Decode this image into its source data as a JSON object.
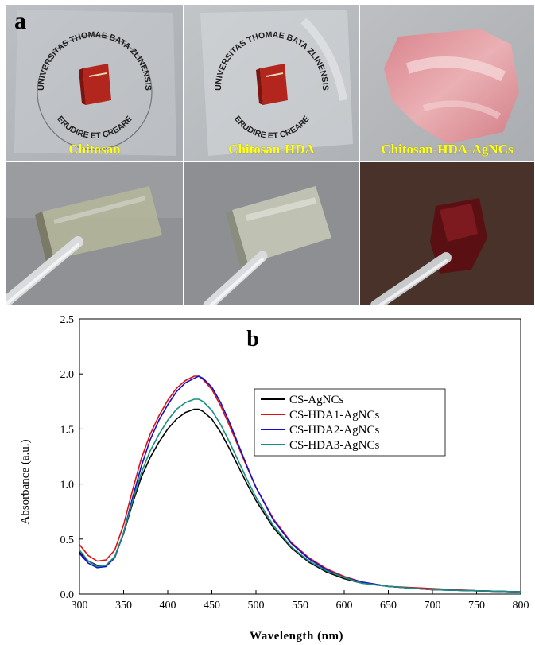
{
  "panel_a": {
    "letter": "a",
    "labels": [
      "Chitosan",
      "Chitosan-HDA",
      "Chitosan-HDA-AgNCs"
    ],
    "seal_text_top": "UNIVERSITAS THOMAE BATA ZLINENSIS",
    "seal_text_bottom": "ERUDIRE ET CREARE"
  },
  "chart_data": {
    "type": "line",
    "panel_letter": "b",
    "title": "",
    "xlabel": "Wavelength (nm)",
    "ylabel": "Absorbance (a.u.)",
    "xlim": [
      300,
      800
    ],
    "ylim": [
      0.0,
      2.5
    ],
    "xticks": [
      300,
      350,
      400,
      450,
      500,
      550,
      600,
      650,
      700,
      750,
      800
    ],
    "yticks": [
      0.0,
      0.5,
      1.0,
      1.5,
      2.0,
      2.5
    ],
    "legend_position": "right",
    "x": [
      300,
      310,
      320,
      330,
      340,
      350,
      360,
      370,
      380,
      390,
      400,
      410,
      420,
      430,
      435,
      440,
      450,
      460,
      470,
      480,
      490,
      500,
      520,
      540,
      560,
      580,
      600,
      620,
      650,
      700,
      750,
      800
    ],
    "series": [
      {
        "name": "CS-AgNCs",
        "color": "#000000",
        "values": [
          0.38,
          0.3,
          0.26,
          0.26,
          0.34,
          0.55,
          0.82,
          1.06,
          1.24,
          1.38,
          1.5,
          1.59,
          1.65,
          1.68,
          1.68,
          1.66,
          1.59,
          1.47,
          1.32,
          1.16,
          1.0,
          0.85,
          0.6,
          0.42,
          0.29,
          0.2,
          0.14,
          0.1,
          0.07,
          0.04,
          0.03,
          0.02
        ]
      },
      {
        "name": "CS-HDA1-AgNCs",
        "color": "#e01010",
        "values": [
          0.45,
          0.35,
          0.3,
          0.31,
          0.4,
          0.63,
          0.94,
          1.23,
          1.45,
          1.62,
          1.76,
          1.87,
          1.94,
          1.98,
          1.98,
          1.95,
          1.86,
          1.71,
          1.53,
          1.34,
          1.15,
          0.97,
          0.68,
          0.47,
          0.33,
          0.23,
          0.16,
          0.11,
          0.07,
          0.05,
          0.03,
          0.02
        ]
      },
      {
        "name": "CS-HDA2-AgNCs",
        "color": "#1010d0",
        "values": [
          0.37,
          0.28,
          0.24,
          0.25,
          0.33,
          0.56,
          0.87,
          1.16,
          1.4,
          1.58,
          1.72,
          1.84,
          1.92,
          1.96,
          1.98,
          1.96,
          1.88,
          1.74,
          1.56,
          1.36,
          1.16,
          0.97,
          0.67,
          0.46,
          0.32,
          0.22,
          0.15,
          0.11,
          0.07,
          0.04,
          0.03,
          0.02
        ]
      },
      {
        "name": "CS-HDA3-AgNCs",
        "color": "#1a9080",
        "values": [
          0.4,
          0.3,
          0.25,
          0.26,
          0.34,
          0.56,
          0.84,
          1.1,
          1.3,
          1.45,
          1.58,
          1.68,
          1.74,
          1.77,
          1.77,
          1.75,
          1.67,
          1.54,
          1.38,
          1.21,
          1.04,
          0.88,
          0.62,
          0.43,
          0.3,
          0.21,
          0.15,
          0.1,
          0.07,
          0.04,
          0.03,
          0.02
        ]
      }
    ]
  }
}
